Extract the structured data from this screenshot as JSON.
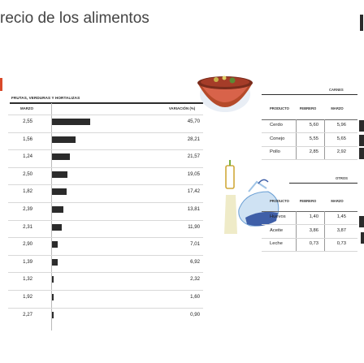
{
  "title": "recio de los alimentos",
  "left_panel": {
    "section": "FRUTAS, VERDURAS Y HORTALIZAS",
    "col_marzo": "MARZO",
    "col_variacion": "VARIACIÓN (%)"
  },
  "chart_data": {
    "type": "bar",
    "title": "",
    "categories": [
      "",
      "",
      "",
      "",
      "",
      "",
      "",
      "",
      "",
      "",
      "",
      ""
    ],
    "marzo": [
      "2,55",
      "1,56",
      "1,24",
      "2,50",
      "1,82",
      "2,39",
      "2,31",
      "2,90",
      "1,39",
      "1,32",
      "1,92",
      "2,27"
    ],
    "variacion_labels": [
      "45,70",
      "28,21",
      "21,57",
      "19,05",
      "17,42",
      "13,81",
      "11,90",
      "7,01",
      "6,92",
      "2,32",
      "1,60",
      "0,90"
    ],
    "values": [
      45.7,
      28.21,
      21.57,
      19.05,
      17.42,
      13.81,
      11.9,
      7.01,
      6.92,
      2.32,
      1.6,
      0.9
    ],
    "xlim": [
      0,
      50
    ]
  },
  "carnes": {
    "section": "CARNES",
    "headers": {
      "producto": "PRODUCTO",
      "febrero": "FEBRERO",
      "marzo": "MARZO"
    },
    "rows": [
      {
        "producto": "Cerdo",
        "febrero": "5,60",
        "marzo": "5,96"
      },
      {
        "producto": "Conejo",
        "febrero": "5,55",
        "marzo": "5,65"
      },
      {
        "producto": "Pollo",
        "febrero": "2,85",
        "marzo": "2,92"
      }
    ]
  },
  "otros": {
    "section": "OTROS",
    "headers": {
      "producto": "PRODUCTO",
      "febrero": "FEBRERO",
      "marzo": "MARZO"
    },
    "rows": [
      {
        "producto": "Huevos",
        "febrero": "1,40",
        "marzo": "1,45"
      },
      {
        "producto": "Aceite",
        "febrero": "3,86",
        "marzo": "3,87"
      },
      {
        "producto": "Leche",
        "febrero": "0,73",
        "marzo": "0,73"
      }
    ]
  },
  "colors": {
    "bar": "#2b2b2b",
    "accent": "#d94a2a",
    "illustration": "#6a9fd4"
  }
}
